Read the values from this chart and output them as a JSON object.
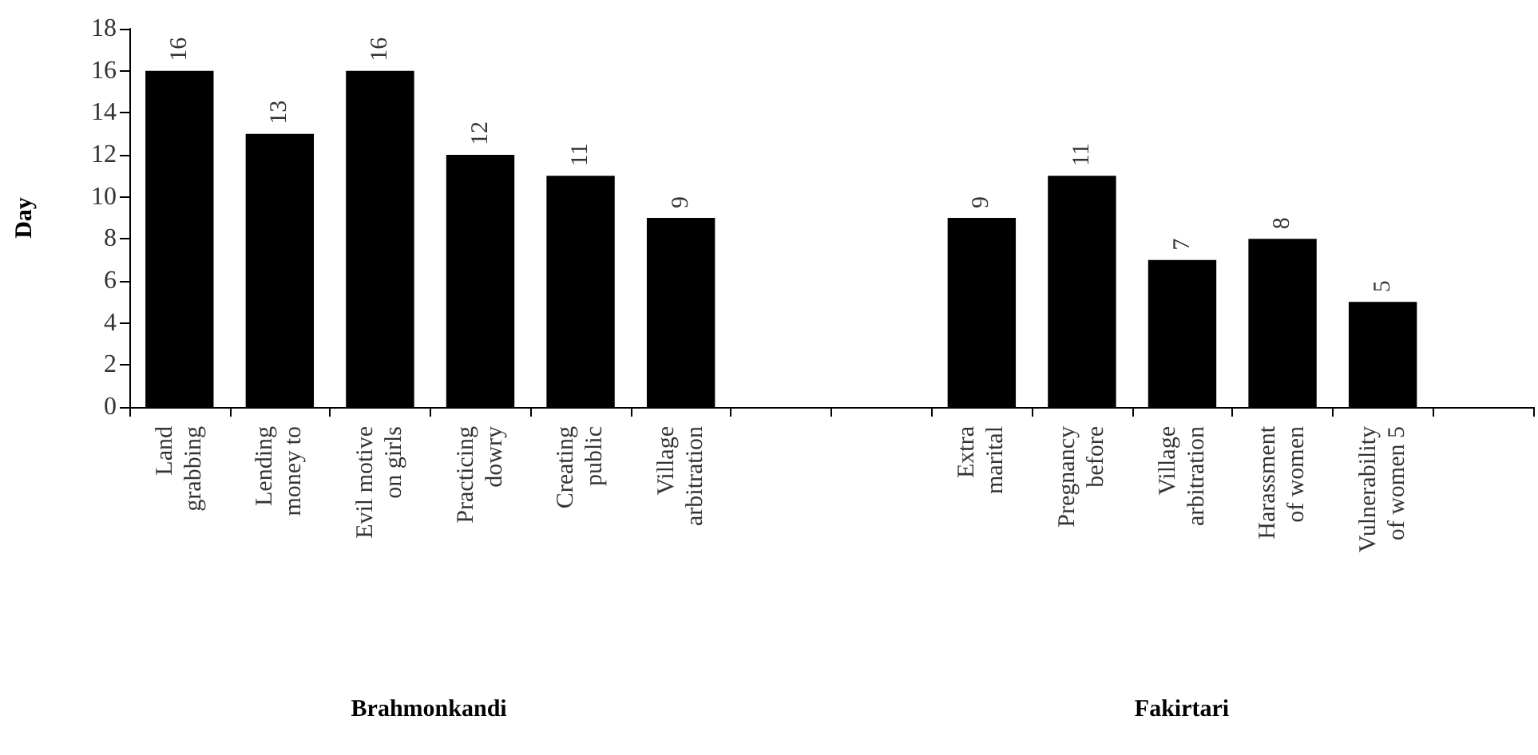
{
  "chart_data": {
    "type": "bar",
    "ylabel": "Day",
    "categories": [
      "Land\ngrabbing",
      "Lending\nmoney to",
      "Evil motive\non girls",
      "Practicing\ndowry",
      "Creating\npublic",
      "Village\narbitration",
      null,
      null,
      "Extra\nmarital",
      "Pregnancy\nbefore",
      "Village\narbitration",
      "Harassment\nof women",
      "Vulnerability\nof women 5",
      null
    ],
    "values": [
      16,
      13,
      16,
      12,
      11,
      9,
      null,
      null,
      9,
      11,
      7,
      8,
      5,
      null
    ],
    "color": "#000000",
    "ylim": [
      0,
      18
    ],
    "yticks": [
      0,
      2,
      4,
      6,
      8,
      10,
      12,
      14,
      16,
      18
    ],
    "data_labels": true,
    "grid": false,
    "annotations": [
      "Brahmonkandi",
      "Fakirtari"
    ]
  }
}
